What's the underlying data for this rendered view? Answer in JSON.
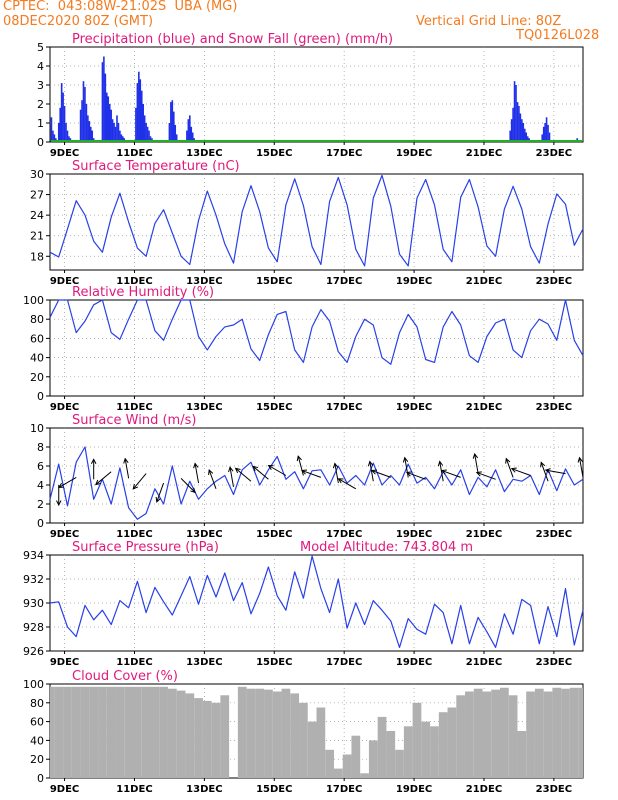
{
  "header": {
    "line1_left": "CPTEC:  043:08W-21:02S  UBA (MG)",
    "line2_left": "08DEC2020 80Z (GMT)",
    "line2_right": "Vertical Grid Line: 80Z",
    "line3_right": "TQ0126L028",
    "color": "#f47b20"
  },
  "colors": {
    "title": "#e0197d",
    "line": "#2840e8",
    "precip": "#2030e8",
    "snow": "#20b020",
    "cloud": "#b0b0b0",
    "wind_arrow": "#000000"
  },
  "day_labels": [
    "9DEC",
    "11DEC",
    "13DEC",
    "15DEC",
    "17DEC",
    "19DEC",
    "21DEC",
    "23DEC"
  ],
  "chart_data": [
    {
      "type": "bar",
      "title": "Precipitation (blue) and Snow Fall (green) (mm/h)",
      "ylim": [
        0,
        5
      ],
      "yticks": [
        0,
        1,
        2,
        3,
        4,
        5
      ],
      "grid": true,
      "x_hours_from_start": [
        1,
        2,
        3,
        4,
        6,
        7,
        8,
        9,
        10,
        11,
        12,
        13,
        14,
        21,
        22,
        23,
        24,
        25,
        26,
        27,
        28,
        29,
        30,
        36,
        37,
        38,
        39,
        40,
        41,
        42,
        43,
        44,
        45,
        46,
        47,
        48,
        49,
        50,
        51,
        52,
        59,
        60,
        61,
        62,
        63,
        64,
        65,
        66,
        67,
        68,
        69,
        70,
        82,
        83,
        84,
        85,
        86,
        87,
        94,
        95,
        96,
        97,
        98,
        99,
        100,
        316,
        317,
        318,
        319,
        320,
        321,
        322,
        323,
        324,
        325,
        326,
        327,
        328,
        329,
        330,
        338,
        339,
        340,
        341,
        342,
        343,
        362
      ],
      "series": [
        {
          "name": "Precipitation",
          "values": [
            1.3,
            0.6,
            0.4,
            0.2,
            1.0,
            1.8,
            3.1,
            2.6,
            1.9,
            1.0,
            0.6,
            0.3,
            0.2,
            1.7,
            2.2,
            3.2,
            2.9,
            2.0,
            1.4,
            1.1,
            0.8,
            0.6,
            0.2,
            4.2,
            4.5,
            3.6,
            2.6,
            2.4,
            2.0,
            1.7,
            1.2,
            1.0,
            0.8,
            1.4,
            1.0,
            0.6,
            0.4,
            0.3,
            0.2,
            0.1,
            1.8,
            3.1,
            3.7,
            3.3,
            2.7,
            2.0,
            1.4,
            1.0,
            0.8,
            0.6,
            0.3,
            0.2,
            1.0,
            2.1,
            2.2,
            1.6,
            0.9,
            0.4,
            0.6,
            1.2,
            1.4,
            0.8,
            0.5,
            0.2,
            0.1,
            0.6,
            1.2,
            1.8,
            3.2,
            3.0,
            2.1,
            1.9,
            1.5,
            1.2,
            1.0,
            0.7,
            0.5,
            0.3,
            0.2,
            0.1,
            0.4,
            0.8,
            1.0,
            1.3,
            0.9,
            0.5,
            0.2
          ]
        }
      ]
    },
    {
      "type": "line",
      "title": "Surface Temperature (nC)",
      "ylim": [
        16,
        30
      ],
      "yticks": [
        18,
        21,
        24,
        27,
        30
      ],
      "grid": true,
      "x_hours_from_start": [
        0,
        6,
        12,
        18,
        24,
        30,
        36,
        42,
        48,
        54,
        60,
        66,
        72,
        78,
        84,
        90,
        96,
        102,
        108,
        114,
        120,
        126,
        132,
        138,
        144,
        150,
        156,
        162,
        168,
        174,
        180,
        186,
        192,
        198,
        204,
        210,
        216,
        222,
        228,
        234,
        240,
        246,
        252,
        258,
        264,
        270,
        276,
        282,
        288,
        294,
        300,
        306,
        312,
        318,
        324,
        330,
        336,
        342,
        348,
        354,
        360,
        366
      ],
      "series": [
        {
          "name": "Temperature",
          "values": [
            18.6,
            17.9,
            22.0,
            26.1,
            24.0,
            20.2,
            18.6,
            23.7,
            27.2,
            23.0,
            19.2,
            18.0,
            22.8,
            24.8,
            21.4,
            18.0,
            16.8,
            23.2,
            27.5,
            24.0,
            19.8,
            17.0,
            24.5,
            28.3,
            24.5,
            19.2,
            17.2,
            25.5,
            29.3,
            25.4,
            19.4,
            16.8,
            26.0,
            29.5,
            25.5,
            19.0,
            16.6,
            26.5,
            29.8,
            25.3,
            18.3,
            16.6,
            26.5,
            29.2,
            25.5,
            19.0,
            17.2,
            26.6,
            29.2,
            25.2,
            19.5,
            18.0,
            24.9,
            28.2,
            24.9,
            19.4,
            17.0,
            22.7,
            27.1,
            25.6,
            19.6,
            22.0
          ]
        }
      ]
    },
    {
      "type": "line",
      "title": "Relative Humidity (%)",
      "ylim": [
        0,
        100
      ],
      "yticks": [
        0,
        20,
        40,
        60,
        80,
        100
      ],
      "grid": true,
      "x_hours_from_start": [
        0,
        6,
        12,
        18,
        24,
        30,
        36,
        42,
        48,
        54,
        60,
        66,
        72,
        78,
        84,
        90,
        96,
        102,
        108,
        114,
        120,
        126,
        132,
        138,
        144,
        150,
        156,
        162,
        168,
        174,
        180,
        186,
        192,
        198,
        204,
        210,
        216,
        222,
        228,
        234,
        240,
        246,
        252,
        258,
        264,
        270,
        276,
        282,
        288,
        294,
        300,
        306,
        312,
        318,
        324,
        330,
        336,
        342,
        348,
        354,
        360,
        366
      ],
      "series": [
        {
          "name": "Humidity",
          "values": [
            82,
            100,
            100,
            66,
            78,
            95,
            100,
            66,
            59,
            80,
            100,
            100,
            68,
            58,
            80,
            100,
            100,
            62,
            48,
            62,
            72,
            74,
            80,
            49,
            37,
            64,
            85,
            88,
            48,
            35,
            72,
            90,
            78,
            46,
            35,
            62,
            80,
            74,
            40,
            33,
            66,
            85,
            72,
            38,
            35,
            72,
            88,
            74,
            42,
            35,
            62,
            76,
            80,
            48,
            40,
            68,
            80,
            75,
            58,
            100,
            58,
            42
          ]
        }
      ]
    },
    {
      "type": "line",
      "title": "Surface Wind (m/s)",
      "ylim": [
        0,
        10
      ],
      "yticks": [
        0,
        2,
        4,
        6,
        8,
        10
      ],
      "grid": true,
      "x_hours_from_start": [
        0,
        6,
        12,
        18,
        24,
        30,
        36,
        42,
        48,
        54,
        60,
        66,
        72,
        78,
        84,
        90,
        96,
        102,
        108,
        114,
        120,
        126,
        132,
        138,
        144,
        150,
        156,
        162,
        168,
        174,
        180,
        186,
        192,
        198,
        204,
        210,
        216,
        222,
        228,
        234,
        240,
        246,
        252,
        258,
        264,
        270,
        276,
        282,
        288,
        294,
        300,
        306,
        312,
        318,
        324,
        330,
        336,
        342,
        348,
        354,
        360,
        366
      ],
      "series": [
        {
          "name": "Wind speed",
          "values": [
            2.5,
            6.2,
            1.8,
            6.4,
            8.0,
            2.5,
            4.6,
            2.0,
            5.8,
            1.6,
            0.4,
            1.0,
            3.6,
            2.0,
            6.0,
            2.0,
            4.4,
            2.5,
            3.6,
            4.4,
            5.0,
            3.0,
            5.6,
            6.4,
            4.0,
            5.6,
            7.0,
            4.6,
            5.4,
            3.6,
            5.5,
            5.6,
            4.0,
            6.0,
            4.2,
            5.0,
            4.0,
            6.3,
            4.0,
            5.0,
            4.0,
            6.2,
            4.2,
            4.8,
            3.6,
            5.4,
            4.0,
            5.6,
            3.0,
            4.8,
            3.8,
            5.6,
            3.3,
            4.6,
            4.4,
            5.0,
            3.0,
            5.6,
            3.4,
            5.7,
            4.0,
            4.6
          ]
        }
      ],
      "wind_arrows": [
        {
          "hour": 6,
          "speed": 4.0,
          "dir_deg": 0
        },
        {
          "hour": 18,
          "speed": 4.8,
          "dir_deg": 300
        },
        {
          "hour": 30,
          "speed": 4.6,
          "dir_deg": 180
        },
        {
          "hour": 42,
          "speed": 5.4,
          "dir_deg": 310
        },
        {
          "hour": 54,
          "speed": 4.7,
          "dir_deg": 190
        },
        {
          "hour": 66,
          "speed": 5.2,
          "dir_deg": 320
        },
        {
          "hour": 78,
          "speed": 4.2,
          "dir_deg": 340
        },
        {
          "hour": 90,
          "speed": 4.7,
          "dir_deg": 45
        },
        {
          "hour": 102,
          "speed": 4.2,
          "dir_deg": 190
        },
        {
          "hour": 114,
          "speed": 3.6,
          "dir_deg": 200
        },
        {
          "hour": 126,
          "speed": 3.8,
          "dir_deg": 190
        },
        {
          "hour": 138,
          "speed": 4.4,
          "dir_deg": 230
        },
        {
          "hour": 150,
          "speed": 4.6,
          "dir_deg": 230
        },
        {
          "hour": 162,
          "speed": 5.0,
          "dir_deg": 240
        },
        {
          "hour": 174,
          "speed": 5.0,
          "dir_deg": 195
        },
        {
          "hour": 186,
          "speed": 4.8,
          "dir_deg": 250
        },
        {
          "hour": 198,
          "speed": 4.2,
          "dir_deg": 190
        },
        {
          "hour": 210,
          "speed": 3.6,
          "dir_deg": 240
        },
        {
          "hour": 222,
          "speed": 4.4,
          "dir_deg": 190
        },
        {
          "hour": 234,
          "speed": 4.8,
          "dir_deg": 250
        },
        {
          "hour": 246,
          "speed": 4.8,
          "dir_deg": 190
        },
        {
          "hour": 258,
          "speed": 4.6,
          "dir_deg": 250
        },
        {
          "hour": 270,
          "speed": 4.4,
          "dir_deg": 190
        },
        {
          "hour": 282,
          "speed": 4.8,
          "dir_deg": 250
        },
        {
          "hour": 294,
          "speed": 5.2,
          "dir_deg": 190
        },
        {
          "hour": 306,
          "speed": 4.6,
          "dir_deg": 250
        },
        {
          "hour": 318,
          "speed": 4.8,
          "dir_deg": 200
        },
        {
          "hour": 330,
          "speed": 5.0,
          "dir_deg": 250
        },
        {
          "hour": 342,
          "speed": 4.4,
          "dir_deg": 200
        },
        {
          "hour": 354,
          "speed": 5.2,
          "dir_deg": 260
        },
        {
          "hour": 366,
          "speed": 4.8,
          "dir_deg": 190
        }
      ]
    },
    {
      "type": "line",
      "title": "Surface Pressure (hPa)",
      "annotation": "Model Altitude: 743.804 m",
      "ylim": [
        926,
        934
      ],
      "yticks": [
        926,
        928,
        930,
        932,
        934
      ],
      "grid": true,
      "x_hours_from_start": [
        0,
        6,
        12,
        18,
        24,
        30,
        36,
        42,
        48,
        54,
        60,
        66,
        72,
        78,
        84,
        90,
        96,
        102,
        108,
        114,
        120,
        126,
        132,
        138,
        144,
        150,
        156,
        162,
        168,
        174,
        180,
        186,
        192,
        198,
        204,
        210,
        216,
        222,
        228,
        234,
        240,
        246,
        252,
        258,
        264,
        270,
        276,
        282,
        288,
        294,
        300,
        306,
        312,
        318,
        324,
        330,
        336,
        342,
        348,
        354,
        360,
        366
      ],
      "series": [
        {
          "name": "Pressure",
          "values": [
            930.0,
            930.1,
            928.0,
            927.2,
            929.8,
            928.6,
            929.4,
            928.2,
            930.2,
            929.6,
            931.8,
            929.2,
            931.3,
            930.1,
            929.0,
            930.6,
            932.2,
            929.9,
            932.3,
            930.5,
            932.5,
            930.2,
            931.7,
            929.1,
            930.8,
            933.0,
            930.6,
            929.4,
            932.6,
            930.4,
            933.9,
            931.2,
            929.2,
            932.0,
            927.9,
            930.0,
            928.2,
            930.2,
            929.4,
            928.5,
            926.3,
            928.7,
            927.8,
            927.4,
            929.9,
            929.2,
            926.6,
            929.8,
            926.6,
            928.8,
            927.6,
            926.3,
            929.1,
            927.4,
            930.3,
            929.8,
            926.6,
            929.7,
            927.2,
            931.2,
            926.5,
            929.4
          ]
        }
      ]
    },
    {
      "type": "bar",
      "title": "Cloud Cover (%)",
      "ylim": [
        0,
        100
      ],
      "yticks": [
        0,
        20,
        40,
        60,
        80,
        100
      ],
      "grid": true,
      "x_hours_from_start": [
        0,
        6,
        12,
        18,
        24,
        30,
        36,
        42,
        48,
        54,
        60,
        66,
        72,
        78,
        84,
        90,
        96,
        102,
        108,
        114,
        120,
        126,
        132,
        138,
        144,
        150,
        156,
        162,
        168,
        174,
        180,
        186,
        192,
        198,
        204,
        210,
        216,
        222,
        228,
        234,
        240,
        246,
        252,
        258,
        264,
        270,
        276,
        282,
        288,
        294,
        300,
        306,
        312,
        318,
        324,
        330,
        336,
        342,
        348,
        354,
        360,
        366
      ],
      "series": [
        {
          "name": "Cloud cover",
          "values": [
            97,
            97,
            97,
            97,
            97,
            97,
            97,
            97,
            97,
            97,
            97,
            97,
            97,
            97,
            95,
            93,
            90,
            85,
            82,
            80,
            88,
            0,
            97,
            95,
            95,
            94,
            92,
            95,
            90,
            80,
            60,
            75,
            30,
            10,
            25,
            45,
            5,
            40,
            65,
            50,
            30,
            55,
            80,
            60,
            55,
            70,
            75,
            88,
            92,
            95,
            92,
            94,
            96,
            88,
            50,
            92,
            95,
            92,
            96,
            95,
            96,
            96
          ]
        }
      ]
    }
  ]
}
